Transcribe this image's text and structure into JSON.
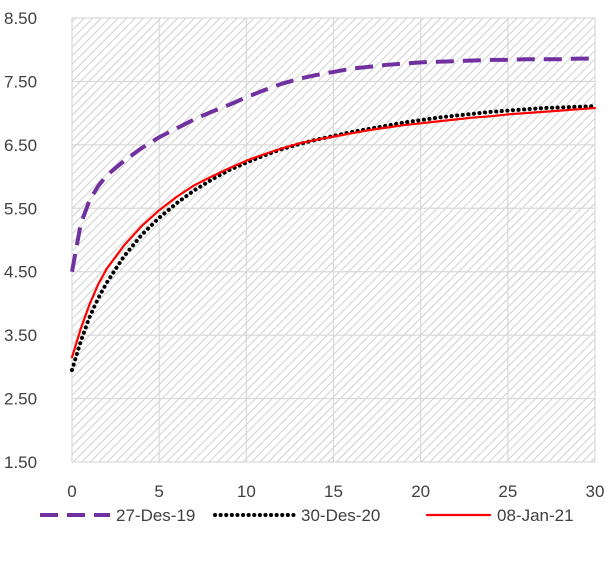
{
  "chart_data": {
    "type": "line",
    "title": "",
    "xlabel": "",
    "ylabel": "",
    "xlim": [
      0,
      30
    ],
    "ylim": [
      1.5,
      8.5
    ],
    "x_ticks": [
      0,
      5,
      10,
      15,
      20,
      25,
      30
    ],
    "x_tick_labels": [
      "0",
      "5",
      "10",
      "15",
      "20",
      "25",
      "30"
    ],
    "y_ticks": [
      1.5,
      2.5,
      3.5,
      4.5,
      5.5,
      6.5,
      7.5,
      8.5
    ],
    "y_tick_labels": [
      "1.50",
      "2.50",
      "3.50",
      "4.50",
      "5.50",
      "6.50",
      "7.50",
      "8.50"
    ],
    "grid": true,
    "background": "hatched",
    "legend_position": "bottom",
    "series": [
      {
        "name": "27-Des-19",
        "color": "#7030A0",
        "style": "dashed",
        "x": [
          0,
          0.5,
          1,
          1.5,
          2,
          3,
          4,
          5,
          6,
          7,
          8,
          9,
          10,
          11,
          12,
          13,
          14,
          15,
          16,
          17,
          18,
          19,
          20,
          21,
          22,
          23,
          24,
          25,
          26,
          27,
          28,
          29,
          30
        ],
        "y": [
          4.5,
          5.25,
          5.62,
          5.85,
          6.02,
          6.25,
          6.45,
          6.62,
          6.76,
          6.9,
          7.02,
          7.13,
          7.25,
          7.36,
          7.46,
          7.54,
          7.6,
          7.65,
          7.7,
          7.73,
          7.76,
          7.78,
          7.8,
          7.81,
          7.82,
          7.83,
          7.84,
          7.84,
          7.85,
          7.85,
          7.85,
          7.86,
          7.86
        ]
      },
      {
        "name": "30-Des-20",
        "color": "#000000",
        "style": "dotted",
        "x": [
          0,
          0.5,
          1,
          1.5,
          2,
          3,
          4,
          5,
          6,
          7,
          8,
          9,
          10,
          11,
          12,
          13,
          14,
          15,
          16,
          17,
          18,
          19,
          20,
          21,
          22,
          23,
          24,
          25,
          26,
          27,
          28,
          29,
          30
        ],
        "y": [
          2.95,
          3.4,
          3.78,
          4.08,
          4.33,
          4.75,
          5.08,
          5.35,
          5.58,
          5.78,
          5.95,
          6.1,
          6.22,
          6.33,
          6.43,
          6.51,
          6.58,
          6.64,
          6.7,
          6.75,
          6.8,
          6.85,
          6.89,
          6.93,
          6.96,
          6.99,
          7.02,
          7.04,
          7.06,
          7.08,
          7.09,
          7.1,
          7.11
        ]
      },
      {
        "name": "08-Jan-21",
        "color": "#FF0000",
        "style": "solid",
        "x": [
          0,
          0.5,
          1,
          1.5,
          2,
          3,
          4,
          5,
          6,
          7,
          8,
          9,
          10,
          11,
          12,
          13,
          14,
          15,
          16,
          17,
          18,
          19,
          20,
          21,
          22,
          23,
          24,
          25,
          26,
          27,
          28,
          29,
          30
        ],
        "y": [
          3.15,
          3.6,
          3.98,
          4.3,
          4.55,
          4.92,
          5.22,
          5.47,
          5.68,
          5.86,
          6.0,
          6.13,
          6.25,
          6.35,
          6.44,
          6.52,
          6.58,
          6.63,
          6.68,
          6.73,
          6.77,
          6.81,
          6.84,
          6.87,
          6.9,
          6.93,
          6.95,
          6.98,
          7.0,
          7.02,
          7.04,
          7.06,
          7.08
        ]
      }
    ]
  }
}
